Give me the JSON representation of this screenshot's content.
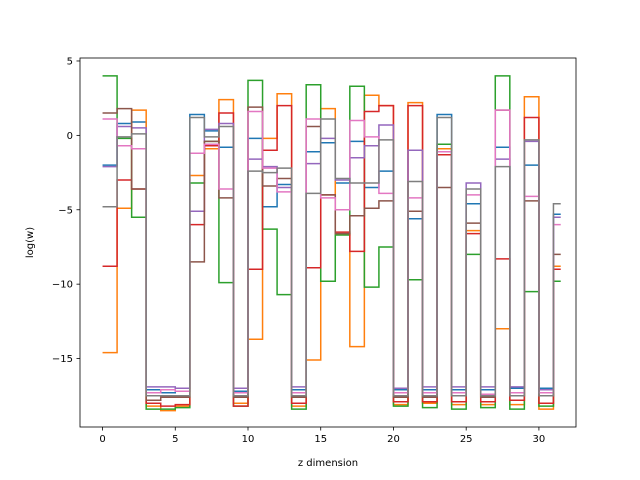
{
  "chart_data": {
    "type": "line",
    "step": "post",
    "xlabel": "z dimension",
    "ylabel": "log(w)",
    "xlim": [
      -1.55,
      32.55
    ],
    "ylim": [
      -19.6,
      5.2
    ],
    "xticks": [
      0,
      5,
      10,
      15,
      20,
      25,
      30
    ],
    "yticks": [
      5,
      0,
      -5,
      -10,
      -15
    ],
    "ytick_labels": [
      "5",
      "0",
      "−5",
      "−10",
      "−15"
    ],
    "grid": false,
    "legend": false,
    "x": [
      0,
      1,
      2,
      3,
      4,
      5,
      6,
      7,
      8,
      9,
      10,
      11,
      12,
      13,
      14,
      15,
      16,
      17,
      18,
      19,
      20,
      21,
      22,
      23,
      24,
      25,
      26,
      27,
      28,
      29,
      30,
      31
    ],
    "series": [
      {
        "color": "#1f77b4",
        "values": [
          -2.0,
          0.8,
          0.9,
          -17.1,
          -17.3,
          -17.2,
          1.4,
          0.3,
          -0.8,
          -17.2,
          -0.2,
          -4.8,
          -3.3,
          -17.1,
          -1.1,
          -0.5,
          -3.2,
          -0.4,
          -3.5,
          -2.4,
          -17.1,
          -5.6,
          -17.1,
          1.4,
          -17.1,
          -4.6,
          -17.1,
          -0.8,
          -17.0,
          -2.0,
          -17.0,
          -5.3
        ]
      },
      {
        "color": "#ff7f0e",
        "values": [
          -14.6,
          -4.9,
          1.7,
          -18.2,
          -18.5,
          -18.2,
          -2.7,
          -0.9,
          2.4,
          -18.0,
          -13.7,
          -0.2,
          2.8,
          -18.2,
          -15.1,
          1.8,
          -6.6,
          -14.2,
          2.7,
          2.0,
          -18.1,
          2.2,
          -18.0,
          -0.9,
          -18.1,
          -6.4,
          -18.1,
          -13.0,
          -18.1,
          2.6,
          -18.4,
          -8.8
        ]
      },
      {
        "color": "#2ca02c",
        "values": [
          4.0,
          -0.2,
          -5.5,
          -18.4,
          -18.4,
          -18.3,
          -3.2,
          -0.4,
          -9.9,
          -18.2,
          3.7,
          -6.3,
          -10.7,
          -18.4,
          3.4,
          -9.8,
          -6.7,
          3.3,
          -10.2,
          -7.5,
          -18.2,
          -9.7,
          -18.3,
          -0.6,
          -18.4,
          -8.0,
          -18.3,
          4.0,
          -18.4,
          -10.5,
          -18.2,
          -9.8
        ]
      },
      {
        "color": "#d62728",
        "values": [
          -8.8,
          -3.0,
          -3.6,
          -18.0,
          -18.2,
          -18.1,
          -6.0,
          -0.7,
          1.5,
          -18.2,
          -9.0,
          -1.0,
          2.0,
          -18.0,
          -8.9,
          -4.0,
          -6.5,
          -7.8,
          1.6,
          2.0,
          -17.9,
          2.0,
          -17.9,
          -1.3,
          -17.9,
          -6.6,
          -17.9,
          -8.3,
          -17.8,
          1.2,
          -18.0,
          -9.0
        ]
      },
      {
        "color": "#9467bd",
        "values": [
          -2.1,
          0.6,
          0.5,
          -16.9,
          -16.9,
          -17.0,
          -5.1,
          0.4,
          0.8,
          -17.0,
          -1.6,
          -2.1,
          -3.5,
          -16.9,
          -1.9,
          -0.2,
          -3.0,
          -1.5,
          -0.7,
          0.7,
          -17.0,
          -1.0,
          -16.9,
          -1.1,
          -16.9,
          -3.2,
          -16.9,
          -1.6,
          -16.9,
          -0.4,
          -17.1,
          -5.5
        ]
      },
      {
        "color": "#8c564b",
        "values": [
          1.5,
          1.8,
          -3.6,
          -17.8,
          -17.6,
          -17.6,
          -8.5,
          -0.4,
          -4.2,
          -17.6,
          1.9,
          -3.4,
          -2.9,
          -17.6,
          0.6,
          -4.0,
          -6.6,
          -5.4,
          -4.9,
          -4.4,
          -17.6,
          -5.1,
          -17.6,
          -3.5,
          -17.5,
          -5.9,
          -17.6,
          1.7,
          -17.5,
          -4.4,
          -17.5,
          -8.0
        ]
      },
      {
        "color": "#e377c2",
        "values": [
          1.1,
          -0.7,
          -0.9,
          -17.3,
          -17.1,
          -17.2,
          -1.2,
          -0.6,
          -3.6,
          -17.3,
          1.6,
          -2.2,
          -3.8,
          -17.3,
          1.1,
          -4.2,
          -5.0,
          1.0,
          -0.1,
          -3.9,
          -17.3,
          -4.2,
          -17.3,
          -1.1,
          -17.3,
          -4.0,
          -17.4,
          1.7,
          -17.3,
          -4.1,
          -17.3,
          -6.0
        ]
      },
      {
        "color": "#7f7f7f",
        "values": [
          -4.8,
          -0.1,
          0.1,
          -17.5,
          -17.5,
          -17.5,
          1.2,
          -0.1,
          0.6,
          -17.5,
          -2.4,
          -2.5,
          -2.2,
          -17.5,
          -3.9,
          1.1,
          -2.9,
          -3.2,
          -3.2,
          -0.3,
          -17.5,
          -3.1,
          -17.5,
          1.2,
          -17.5,
          -3.6,
          -17.5,
          -2.1,
          -17.5,
          -0.3,
          -17.5,
          -4.6
        ]
      }
    ]
  }
}
